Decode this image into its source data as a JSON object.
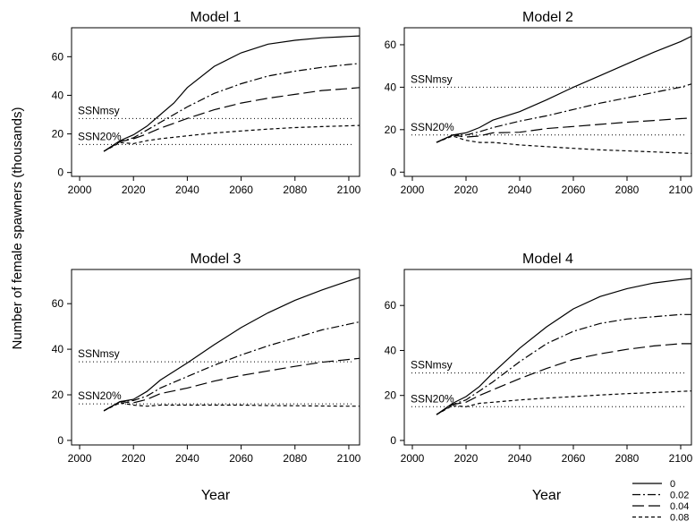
{
  "figure": {
    "ylabel": "Number of female spawners (thousands)",
    "xlabel_left": "Year",
    "xlabel_right": "Year"
  },
  "legend": {
    "position": "bottom-right",
    "items": [
      {
        "label": "0",
        "dash": "solid"
      },
      {
        "label": "0.02",
        "dash": "dashdot"
      },
      {
        "label": "0.04",
        "dash": "longdash"
      },
      {
        "label": "0.08",
        "dash": "shortdash"
      }
    ]
  },
  "chart_data": [
    {
      "type": "line",
      "title": "Model 1",
      "xlim": [
        1997,
        2104
      ],
      "ylim": [
        -2,
        75
      ],
      "xticks": [
        2000,
        2020,
        2040,
        2060,
        2080,
        2100
      ],
      "yticks": [
        0,
        20,
        40,
        60
      ],
      "reference_lines": [
        {
          "label": "SSNmsy",
          "y": 28
        },
        {
          "label": "SSN20%",
          "y": 14.5
        }
      ],
      "series": [
        {
          "name": "0",
          "x": [
            2009,
            2015,
            2020,
            2025,
            2030,
            2035,
            2040,
            2050,
            2060,
            2070,
            2080,
            2090,
            2100,
            2104
          ],
          "y": [
            11,
            16.5,
            19.5,
            24,
            30,
            36,
            44,
            55,
            62,
            66.5,
            68.5,
            69.8,
            70.5,
            70.8
          ]
        },
        {
          "name": "0.02",
          "x": [
            2009,
            2015,
            2020,
            2025,
            2030,
            2040,
            2050,
            2060,
            2070,
            2080,
            2090,
            2100,
            2104
          ],
          "y": [
            11,
            16,
            18,
            22,
            26,
            34,
            41,
            46,
            50,
            52.5,
            54.5,
            56,
            56.5
          ]
        },
        {
          "name": "0.04",
          "x": [
            2009,
            2015,
            2020,
            2025,
            2030,
            2040,
            2050,
            2060,
            2070,
            2080,
            2090,
            2100,
            2104
          ],
          "y": [
            11,
            16,
            17.5,
            20,
            23,
            28,
            32.5,
            36,
            38.5,
            40.5,
            42.5,
            43.5,
            44
          ]
        },
        {
          "name": "0.08",
          "x": [
            2009,
            2015,
            2020,
            2025,
            2030,
            2040,
            2050,
            2060,
            2070,
            2080,
            2090,
            2100,
            2104
          ],
          "y": [
            11,
            15.5,
            15,
            16.5,
            17.5,
            19,
            20.5,
            21.5,
            22.5,
            23.3,
            23.8,
            24.2,
            24.4
          ]
        }
      ]
    },
    {
      "type": "line",
      "title": "Model 2",
      "xlim": [
        1997,
        2104
      ],
      "ylim": [
        -2,
        68
      ],
      "xticks": [
        2000,
        2020,
        2040,
        2060,
        2080,
        2100
      ],
      "yticks": [
        0,
        20,
        40,
        60
      ],
      "reference_lines": [
        {
          "label": "SSNmsy",
          "y": 40
        },
        {
          "label": "SSN20%",
          "y": 17.5
        }
      ],
      "series": [
        {
          "name": "0",
          "x": [
            2009,
            2015,
            2020,
            2025,
            2030,
            2040,
            2050,
            2060,
            2070,
            2080,
            2090,
            2100,
            2104
          ],
          "y": [
            14,
            17.5,
            18.5,
            21,
            24.5,
            28.5,
            34,
            40,
            45.5,
            51,
            56.5,
            61.5,
            64
          ]
        },
        {
          "name": "0.02",
          "x": [
            2009,
            2015,
            2020,
            2025,
            2030,
            2040,
            2050,
            2060,
            2070,
            2080,
            2090,
            2100,
            2104
          ],
          "y": [
            14,
            17.5,
            17.5,
            19,
            21,
            24,
            26.5,
            29.5,
            32.5,
            35,
            37.5,
            40,
            41.5
          ]
        },
        {
          "name": "0.04",
          "x": [
            2009,
            2015,
            2020,
            2025,
            2030,
            2040,
            2050,
            2060,
            2070,
            2080,
            2090,
            2100,
            2104
          ],
          "y": [
            14,
            17.5,
            16.5,
            17,
            18.5,
            18.8,
            20.5,
            21.5,
            22.5,
            23.5,
            24.3,
            25.2,
            25.5
          ]
        },
        {
          "name": "0.08",
          "x": [
            2009,
            2015,
            2020,
            2025,
            2030,
            2040,
            2050,
            2060,
            2070,
            2080,
            2090,
            2100,
            2104
          ],
          "y": [
            14,
            17,
            15,
            14,
            14,
            12.8,
            12,
            11.2,
            10.5,
            10,
            9.5,
            9,
            8.8
          ]
        }
      ]
    },
    {
      "type": "line",
      "title": "Model 3",
      "xlim": [
        1997,
        2104
      ],
      "ylim": [
        -2,
        75
      ],
      "xticks": [
        2000,
        2020,
        2040,
        2060,
        2080,
        2100
      ],
      "yticks": [
        0,
        20,
        40,
        60
      ],
      "reference_lines": [
        {
          "label": "SSNmsy",
          "y": 34.5
        },
        {
          "label": "SSN20%",
          "y": 16
        }
      ],
      "series": [
        {
          "name": "0",
          "x": [
            2009,
            2015,
            2020,
            2025,
            2030,
            2040,
            2050,
            2060,
            2070,
            2080,
            2090,
            2100,
            2104
          ],
          "y": [
            13,
            17,
            18,
            21.5,
            26.5,
            34,
            42,
            49.5,
            56,
            61.5,
            66,
            70,
            71.5
          ]
        },
        {
          "name": "0.02",
          "x": [
            2009,
            2015,
            2020,
            2025,
            2030,
            2040,
            2050,
            2060,
            2070,
            2080,
            2090,
            2100,
            2104
          ],
          "y": [
            13,
            17,
            17.5,
            19.5,
            23,
            28,
            33,
            37.5,
            41.5,
            45,
            48.5,
            51,
            52
          ]
        },
        {
          "name": "0.04",
          "x": [
            2009,
            2015,
            2020,
            2025,
            2030,
            2040,
            2050,
            2060,
            2070,
            2080,
            2090,
            2100,
            2104
          ],
          "y": [
            13,
            17,
            16.5,
            18,
            20.5,
            23,
            26,
            28.5,
            30.5,
            32.5,
            34.3,
            35.5,
            36
          ]
        },
        {
          "name": "0.08",
          "x": [
            2009,
            2015,
            2020,
            2025,
            2030,
            2040,
            2050,
            2060,
            2070,
            2080,
            2090,
            2100,
            2104
          ],
          "y": [
            13,
            16.5,
            15.5,
            15,
            15.5,
            15.5,
            15.5,
            15.5,
            15.3,
            15.2,
            15.1,
            15,
            15
          ]
        }
      ]
    },
    {
      "type": "line",
      "title": "Model 4",
      "xlim": [
        1997,
        2104
      ],
      "ylim": [
        -2,
        76
      ],
      "xticks": [
        2000,
        2020,
        2040,
        2060,
        2080,
        2100
      ],
      "yticks": [
        0,
        20,
        40,
        60
      ],
      "reference_lines": [
        {
          "label": "SSNmsy",
          "y": 30
        },
        {
          "label": "SSN20%",
          "y": 15
        }
      ],
      "series": [
        {
          "name": "0",
          "x": [
            2009,
            2015,
            2020,
            2025,
            2030,
            2040,
            2050,
            2060,
            2070,
            2080,
            2090,
            2100,
            2104
          ],
          "y": [
            11.5,
            16.5,
            19.5,
            24,
            30,
            41,
            50.5,
            58.5,
            64,
            67.5,
            70,
            71.5,
            72
          ]
        },
        {
          "name": "0.02",
          "x": [
            2009,
            2015,
            2020,
            2025,
            2030,
            2040,
            2050,
            2060,
            2070,
            2080,
            2090,
            2100,
            2104
          ],
          "y": [
            11.5,
            16,
            18,
            22,
            26,
            35,
            43,
            48.5,
            52,
            54,
            55,
            56,
            56
          ]
        },
        {
          "name": "0.04",
          "x": [
            2009,
            2015,
            2020,
            2025,
            2030,
            2040,
            2050,
            2060,
            2070,
            2080,
            2090,
            2100,
            2104
          ],
          "y": [
            11.5,
            16,
            17,
            20,
            22.5,
            27.5,
            32,
            36,
            38.5,
            40.5,
            42,
            43,
            43
          ]
        },
        {
          "name": "0.08",
          "x": [
            2009,
            2015,
            2020,
            2025,
            2030,
            2040,
            2050,
            2060,
            2070,
            2080,
            2090,
            2100,
            2104
          ],
          "y": [
            11.5,
            15.5,
            15,
            16.5,
            17,
            18,
            18.8,
            19.5,
            20.2,
            20.8,
            21.3,
            21.8,
            22
          ]
        }
      ]
    }
  ]
}
